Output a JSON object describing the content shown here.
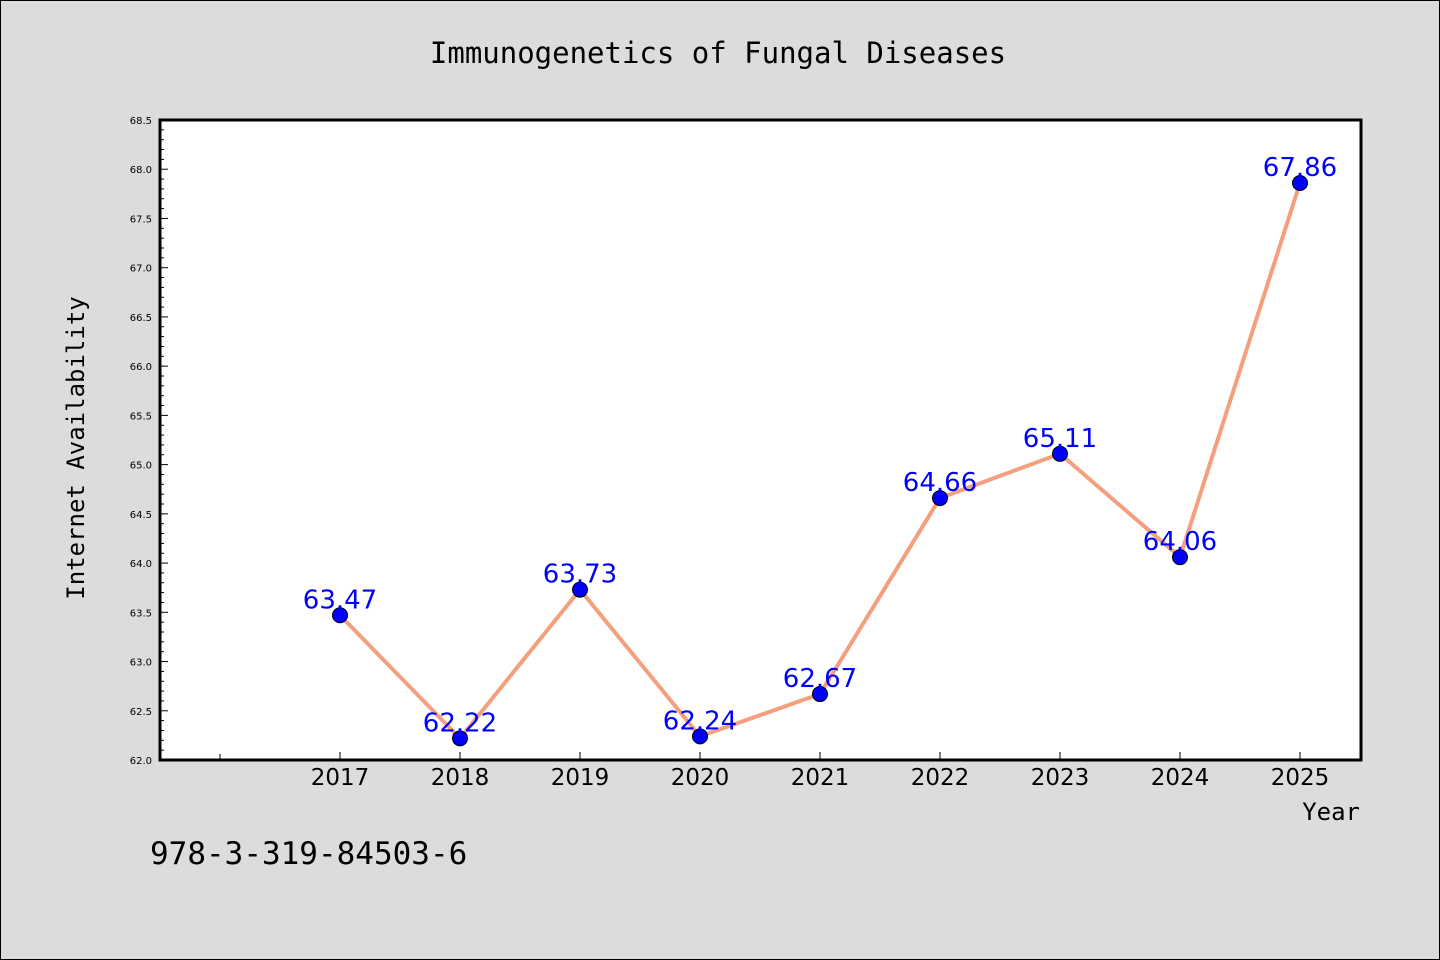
{
  "chart_data": {
    "type": "line",
    "title": "Immunogenetics of Fungal Diseases",
    "xlabel": "Year",
    "ylabel": "Internet Availability",
    "categories": [
      "2017",
      "2018",
      "2019",
      "2020",
      "2021",
      "2022",
      "2023",
      "2024",
      "2025"
    ],
    "values": [
      63.47,
      62.22,
      63.73,
      62.24,
      62.67,
      64.66,
      65.11,
      64.06,
      67.86
    ],
    "data_labels": [
      "63.47",
      "62.22",
      "63.73",
      "62.24",
      "62.67",
      "64.66",
      "65.11",
      "64.06",
      "67.86"
    ],
    "ylim": [
      62.0,
      68.5
    ],
    "yticks": [
      "62.0",
      "62.5",
      "63.0",
      "63.5",
      "64.0",
      "64.5",
      "65.0",
      "65.5",
      "66.0",
      "66.5",
      "67.0",
      "67.5",
      "68.0",
      "68.5"
    ],
    "grid": false,
    "legend": "none",
    "colors": {
      "line": "#f4a07e",
      "marker": "#0000ff",
      "data_label": "#0000ff",
      "background": "#dcdcdc",
      "plot_background": "#ffffff"
    }
  },
  "footer": {
    "isbn": "978-3-319-84503-6"
  }
}
